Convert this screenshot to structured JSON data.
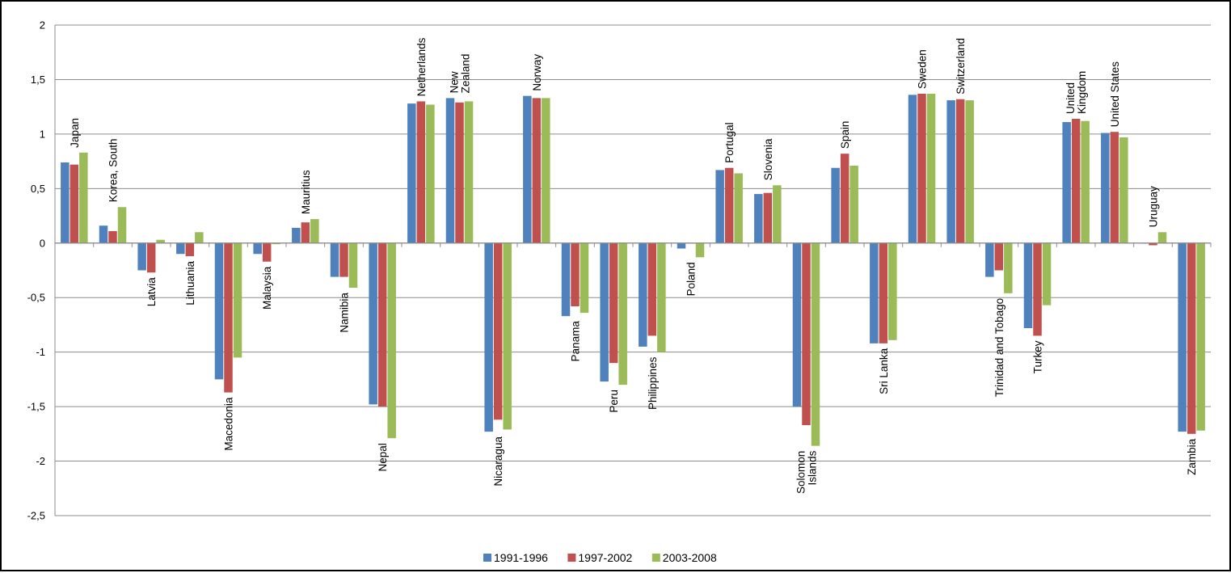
{
  "chart_data": {
    "type": "bar",
    "title": "",
    "xlabel": "",
    "ylabel": "",
    "ylim": [
      -2.5,
      2
    ],
    "yticks": [
      "2",
      "1,5",
      "1",
      "0,5",
      "0",
      "-0,5",
      "-1",
      "-1,5",
      "-2",
      "-2,5"
    ],
    "grid": true,
    "legend_position": "bottom",
    "categories": [
      "Japan",
      "Korea, South",
      "Latvia",
      "Lithuania",
      "Macedonia",
      "Malaysia",
      "Mauritius",
      "Namibia",
      "Nepal",
      "Netherlands",
      "New Zealand",
      "Nicaragua",
      "Norway",
      "Panama",
      "Peru",
      "Philippines",
      "Poland",
      "Portugal",
      "Slovenia",
      "Solomon Islands",
      "Spain",
      "Sri Lanka",
      "Sweden",
      "Switzerland",
      "Trinidad and Tobago",
      "Turkey",
      "United Kingdom",
      "United States",
      "Uruguay",
      "Zambia"
    ],
    "series": [
      {
        "name": "1991-1996",
        "color": "#4F81BD",
        "values": [
          0.74,
          0.16,
          -0.25,
          -0.1,
          -1.25,
          -0.1,
          0.14,
          -0.31,
          -1.48,
          1.28,
          1.33,
          -1.73,
          1.35,
          -0.67,
          -1.27,
          -0.95,
          -0.05,
          0.67,
          0.45,
          -1.5,
          0.69,
          -0.92,
          1.36,
          1.31,
          -0.31,
          -0.78,
          1.11,
          1.01,
          0.0,
          -1.73
        ]
      },
      {
        "name": "1997-2002",
        "color": "#C0504D",
        "values": [
          0.72,
          0.11,
          -0.27,
          -0.12,
          -1.37,
          -0.17,
          0.19,
          -0.31,
          -1.5,
          1.3,
          1.29,
          -1.62,
          1.33,
          -0.58,
          -1.1,
          -0.85,
          0.0,
          0.69,
          0.46,
          -1.67,
          0.82,
          -0.92,
          1.37,
          1.32,
          -0.25,
          -0.85,
          1.14,
          1.02,
          -0.02,
          -1.75
        ]
      },
      {
        "name": "2003-2008",
        "color": "#9BBB59",
        "values": [
          0.83,
          0.33,
          0.03,
          0.1,
          -1.05,
          -0.01,
          0.22,
          -0.41,
          -1.79,
          1.27,
          1.3,
          -1.71,
          1.33,
          -0.64,
          -1.3,
          -1.0,
          -0.13,
          0.64,
          0.53,
          -1.86,
          0.71,
          -0.89,
          1.37,
          1.31,
          -0.46,
          -0.57,
          1.12,
          0.97,
          0.1,
          -1.72
        ]
      }
    ]
  }
}
